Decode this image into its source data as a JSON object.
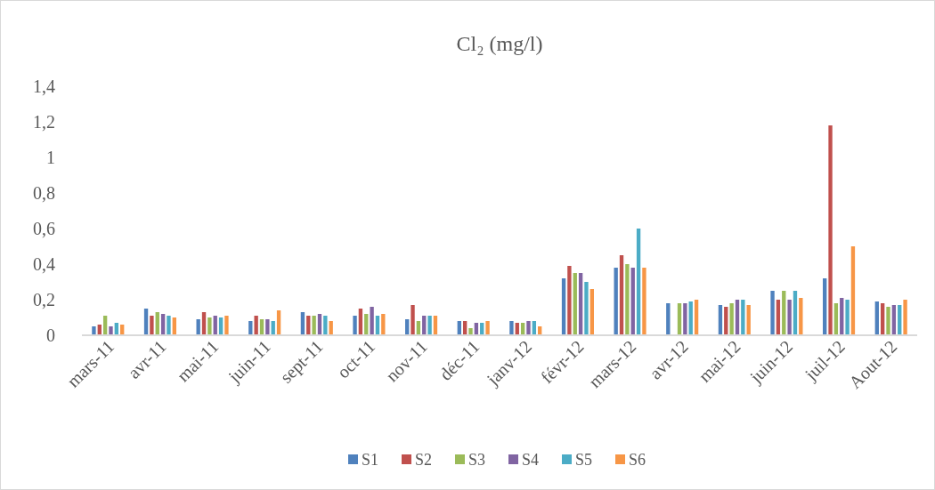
{
  "chart_data": {
    "type": "bar",
    "title": "Cl₂ (mg/l)",
    "categories": [
      "mars-11",
      "avr-11",
      "mai-11",
      "juin-11",
      "sept-11",
      "oct-11",
      "nov-11",
      "déc-11",
      "janv-12",
      "févr-12",
      "mars-12",
      "avr-12",
      "mai-12",
      "juin-12",
      "juil-12",
      "Aout-12"
    ],
    "series": [
      {
        "name": "S1",
        "color": "#4f81bd",
        "values": [
          0.05,
          0.15,
          0.09,
          0.08,
          0.13,
          0.11,
          0.09,
          0.08,
          0.08,
          0.32,
          0.38,
          0.18,
          0.17,
          0.25,
          0.32,
          0.19
        ]
      },
      {
        "name": "S2",
        "color": "#c0504d",
        "values": [
          0.06,
          0.11,
          0.13,
          0.11,
          0.11,
          0.15,
          0.17,
          0.08,
          0.07,
          0.39,
          0.45,
          null,
          0.16,
          0.2,
          1.18,
          0.18
        ]
      },
      {
        "name": "S3",
        "color": "#9bbb59",
        "values": [
          0.11,
          0.13,
          0.1,
          0.09,
          0.11,
          0.12,
          0.08,
          0.04,
          0.07,
          0.35,
          0.4,
          0.18,
          0.18,
          0.25,
          0.18,
          0.16
        ]
      },
      {
        "name": "S4",
        "color": "#8064a2",
        "values": [
          0.05,
          0.12,
          0.11,
          0.09,
          0.12,
          0.16,
          0.11,
          0.07,
          0.08,
          0.35,
          0.38,
          0.18,
          0.2,
          0.2,
          0.21,
          0.17
        ]
      },
      {
        "name": "S5",
        "color": "#4bacc6",
        "values": [
          0.07,
          0.11,
          0.1,
          0.08,
          0.11,
          0.11,
          0.11,
          0.07,
          0.08,
          0.3,
          0.6,
          0.19,
          0.2,
          0.25,
          0.2,
          0.17
        ]
      },
      {
        "name": "S6",
        "color": "#f79646",
        "values": [
          0.06,
          0.1,
          0.11,
          0.14,
          0.08,
          0.12,
          0.11,
          0.08,
          0.05,
          0.26,
          0.38,
          0.2,
          0.17,
          0.21,
          0.5,
          0.2
        ]
      }
    ],
    "ylim": [
      0,
      1.4
    ],
    "yticks": [
      {
        "value": 0,
        "label": "0"
      },
      {
        "value": 0.2,
        "label": "0,2"
      },
      {
        "value": 0.4,
        "label": "0,4"
      },
      {
        "value": 0.6,
        "label": "0,6"
      },
      {
        "value": 0.8,
        "label": "0,8"
      },
      {
        "value": 1,
        "label": "1"
      },
      {
        "value": 1.2,
        "label": "1,2"
      },
      {
        "value": 1.4,
        "label": "1,4"
      }
    ],
    "grid": false,
    "legend": "bottom"
  }
}
